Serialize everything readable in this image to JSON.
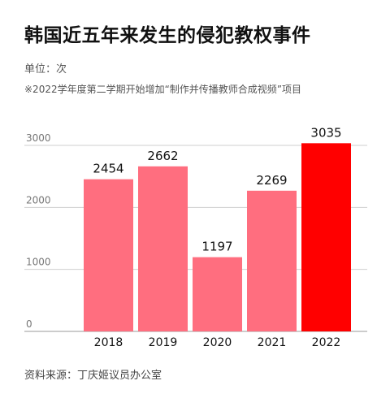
{
  "title": "韩国近五年来发生的侵犯教权事件",
  "unit_text": "单位：次",
  "note_text": "※2022学年度第二学期开始增加“制作并传播教师合成视频”项目",
  "source_text": "资料来源：丁庆姬议员办公室",
  "colors": {
    "bar": "#ff6e7f",
    "highlight": "#ff0000",
    "highlight_label": "#ee1111",
    "grid": "#cfcfcf"
  },
  "chart_data": {
    "type": "bar",
    "categories": [
      "2018",
      "2019",
      "2020",
      "2021",
      "2022"
    ],
    "values": [
      2454,
      2662,
      1197,
      2269,
      3035
    ],
    "highlight_index": 4,
    "yticks": [
      0,
      1000,
      2000,
      3000
    ],
    "ylim": [
      0,
      3000
    ],
    "grid": true,
    "title": "韩国近五年来发生的侵犯教权事件",
    "ylabel": "单位：次",
    "xlabel": ""
  }
}
